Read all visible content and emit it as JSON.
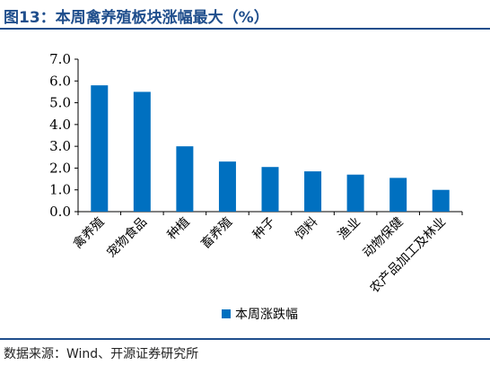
{
  "title": "图13：本周禽养殖板块涨幅最大（%）",
  "source": "数据来源：Wind、开源证券研究所",
  "chart_data": {
    "type": "bar",
    "title": "",
    "xlabel": "",
    "ylabel": "",
    "categories": [
      "禽养殖",
      "宠物食品",
      "种植",
      "畜养殖",
      "种子",
      "饲料",
      "渔业",
      "动物保健",
      "农产品加工及林业"
    ],
    "series": [
      {
        "name": "本周涨跌幅",
        "values": [
          5.8,
          5.5,
          3.0,
          2.3,
          2.05,
          1.85,
          1.7,
          1.55,
          1.0
        ]
      }
    ],
    "ylim": [
      0,
      7
    ],
    "yticks": [
      "0.0",
      "1.0",
      "2.0",
      "3.0",
      "4.0",
      "5.0",
      "6.0",
      "7.0"
    ],
    "grid": false,
    "legend_position": "bottom",
    "bar_color": "#0070c0"
  }
}
